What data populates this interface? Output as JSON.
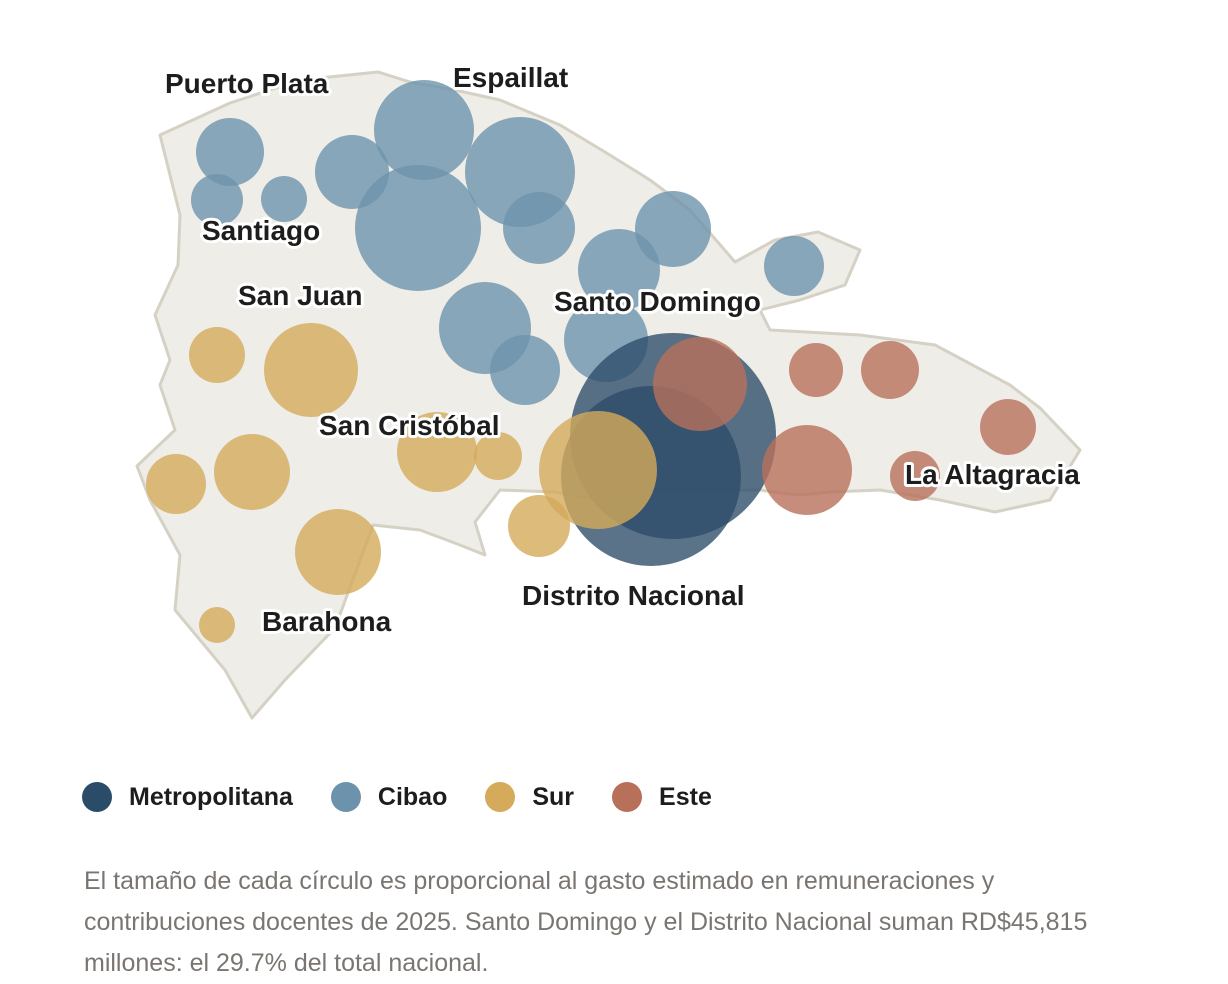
{
  "colors": {
    "Metropolitana": "#2b4c68",
    "Cibao": "#6d93ac",
    "Sur": "#d5aa5a",
    "Este": "#b8705b",
    "land_fill": "#efede8",
    "land_stroke": "#d6d1c5"
  },
  "map_labels": [
    "Puerto Plata",
    "Espaillat",
    "Santiago",
    "San Juan",
    "Santo Domingo",
    "San Cristóbal",
    "La Altagracia",
    "Distrito Nacional",
    "Barahona"
  ],
  "legend": [
    {
      "label": "Metropolitana",
      "region": "Metropolitana"
    },
    {
      "label": "Cibao",
      "region": "Cibao"
    },
    {
      "label": "Sur",
      "region": "Sur"
    },
    {
      "label": "Este",
      "region": "Este"
    }
  ],
  "caption": "El tamaño de cada círculo es proporcional al gasto estimado en remuneraciones y contribuciones docentes de 2025. Santo Domingo y el Distrito Nacional suman RD$45,815 millones: el 29.7% del total nacional."
}
